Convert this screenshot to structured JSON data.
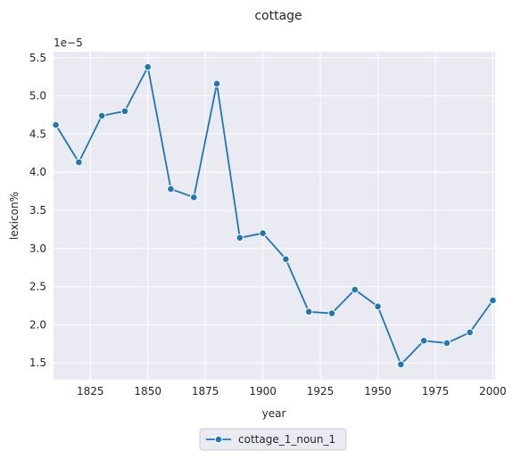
{
  "chart_data": {
    "type": "line",
    "title": "cottage",
    "xlabel": "year",
    "ylabel": "lexicon%",
    "y_offset_label": "1e−5",
    "x": [
      1810,
      1820,
      1830,
      1840,
      1850,
      1860,
      1870,
      1880,
      1890,
      1900,
      1910,
      1920,
      1930,
      1940,
      1950,
      1960,
      1970,
      1980,
      1990,
      2000
    ],
    "series": [
      {
        "name": "cottage_1_noun_1",
        "values": [
          4.62,
          4.13,
          4.74,
          4.8,
          5.38,
          3.78,
          3.67,
          5.16,
          3.14,
          3.2,
          2.86,
          2.17,
          2.15,
          2.46,
          2.24,
          1.48,
          1.79,
          1.76,
          1.9,
          2.32
        ],
        "color": "#1f77b4"
      }
    ],
    "xlim": [
      1809,
      2001
    ],
    "ylim": [
      1.28,
      5.58
    ],
    "x_ticks": [
      "1825",
      "1850",
      "1875",
      "1900",
      "1925",
      "1950",
      "1975",
      "2000"
    ],
    "y_ticks": [
      "1.5",
      "2.0",
      "2.5",
      "3.0",
      "3.5",
      "4.0",
      "4.5",
      "5.0",
      "5.5"
    ],
    "grid": true,
    "legend_position": "bottom-center",
    "colors": {
      "background": "#eaeaf2",
      "grid": "#ffffff",
      "line": "#1f77b4"
    }
  }
}
